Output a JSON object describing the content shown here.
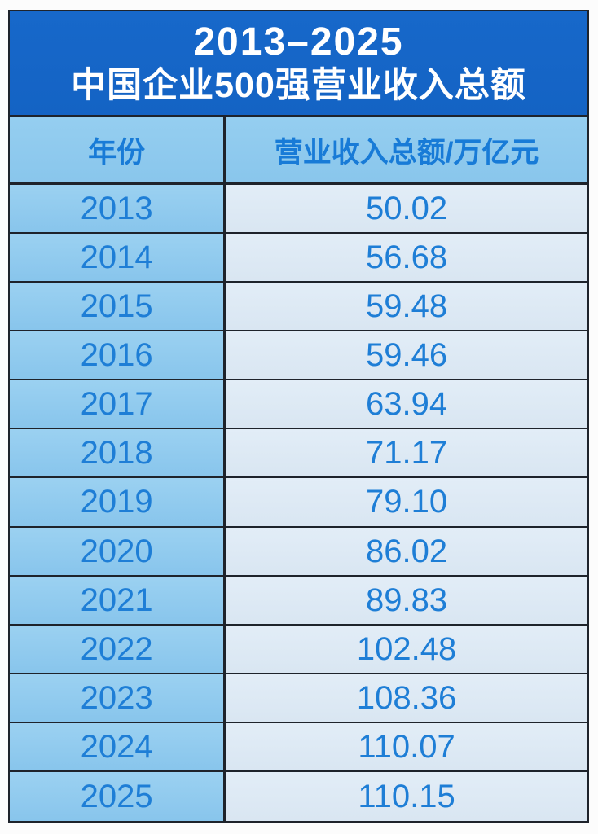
{
  "title": {
    "line1": "2013–2025",
    "line2": "中国企业500强营业收入总额"
  },
  "table": {
    "columns": {
      "year": "年份",
      "value": "营业收入总额/万亿元"
    },
    "rows": [
      {
        "year": "2013",
        "value": "50.02"
      },
      {
        "year": "2014",
        "value": "56.68"
      },
      {
        "year": "2015",
        "value": "59.48"
      },
      {
        "year": "2016",
        "value": "59.46"
      },
      {
        "year": "2017",
        "value": "63.94"
      },
      {
        "year": "2018",
        "value": "71.17"
      },
      {
        "year": "2019",
        "value": "79.10"
      },
      {
        "year": "2020",
        "value": "86.02"
      },
      {
        "year": "2021",
        "value": "89.83"
      },
      {
        "year": "2022",
        "value": "102.48"
      },
      {
        "year": "2023",
        "value": "108.36"
      },
      {
        "year": "2024",
        "value": "110.07"
      },
      {
        "year": "2025",
        "value": "110.15"
      }
    ]
  },
  "colors": {
    "banner_bg": "#1565c6",
    "banner_text": "#ffffff",
    "header_bg": "#8ecaee",
    "year_cell_bg": "#90c9ee",
    "value_cell_bg": "#dde9f4",
    "text_blue": "#1e7ed6",
    "header_text_blue": "#187bd7",
    "border": "#1e232b",
    "page_bg": "#fcfcfc"
  },
  "chart_data": {
    "type": "table",
    "title": "2013–2025 中国企业500强营业收入总额",
    "columns": [
      "年份",
      "营业收入总额/万亿元"
    ],
    "categories": [
      "2013",
      "2014",
      "2015",
      "2016",
      "2017",
      "2018",
      "2019",
      "2020",
      "2021",
      "2022",
      "2023",
      "2024",
      "2025"
    ],
    "values": [
      50.02,
      56.68,
      59.48,
      59.46,
      63.94,
      71.17,
      79.1,
      86.02,
      89.83,
      102.48,
      108.36,
      110.07,
      110.15
    ],
    "unit": "万亿元"
  }
}
